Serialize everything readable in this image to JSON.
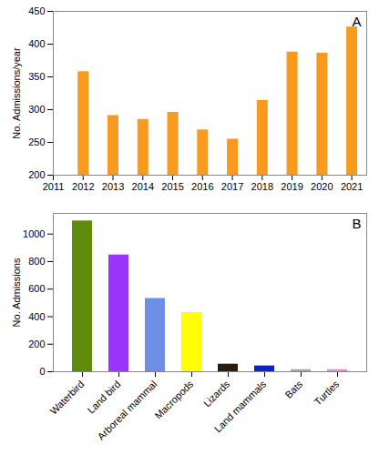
{
  "chart_data": [
    {
      "type": "bar",
      "title": "A",
      "y_label": "No. Admissions/year",
      "x": [
        2012,
        2013,
        2014,
        2015,
        2016,
        2017,
        2018,
        2019,
        2020,
        2021
      ],
      "values": [
        358,
        291,
        285,
        296,
        269,
        255,
        314,
        388,
        386,
        426
      ],
      "color": "#f79a1e",
      "xlim": [
        2011,
        2021.5
      ],
      "xticks": [
        2011,
        2012,
        2013,
        2014,
        2015,
        2016,
        2017,
        2018,
        2019,
        2020,
        2021
      ],
      "ylim": [
        200,
        450
      ],
      "yticks": [
        200,
        250,
        300,
        350,
        400,
        450
      ],
      "grid": false
    },
    {
      "type": "bar",
      "title": "B",
      "y_label": "No. Admissions",
      "categories": [
        "Waterbird",
        "Land bird",
        "Arboreal mammal",
        "Macropods",
        "Lizards",
        "Land mammals",
        "Bats",
        "Turtles"
      ],
      "values": [
        1095,
        848,
        532,
        430,
        55,
        42,
        15,
        15
      ],
      "colors": [
        "#5e8c0a",
        "#9b33ff",
        "#6f8fe6",
        "#ffff00",
        "#2b1d0e",
        "#0a24c8",
        "#a6a6a6",
        "#e38ad9"
      ],
      "ylim": [
        0,
        1150
      ],
      "yticks": [
        0,
        200,
        400,
        600,
        800,
        1000
      ],
      "grid": false
    }
  ]
}
